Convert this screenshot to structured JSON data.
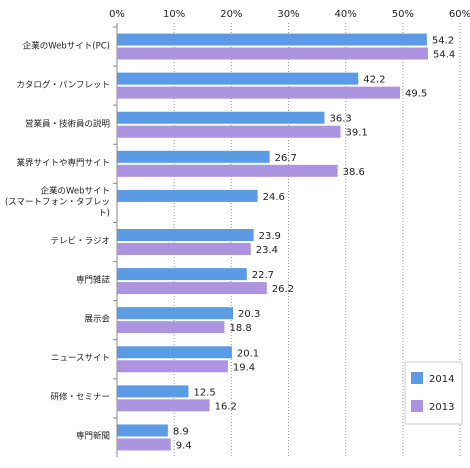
{
  "chart_data": {
    "type": "bar",
    "orientation": "horizontal",
    "categories": [
      "企業のWebサイト(PC)",
      "カタログ・パンフレット",
      "営業員・技術員の説明",
      "業界サイトや専門サイト",
      "企業のWebサイト\n(スマートフォン・タブレット)",
      "テレビ・ラジオ",
      "専門雑誌",
      "展示会",
      "ニュースサイト",
      "研修・セミナー",
      "専門新聞"
    ],
    "series": [
      {
        "name": "2014",
        "color": "#5b9be6",
        "values": [
          54.2,
          42.2,
          36.3,
          26.7,
          24.6,
          23.9,
          22.7,
          20.3,
          20.1,
          12.5,
          8.9
        ]
      },
      {
        "name": "2013",
        "color": "#ad94e0",
        "values": [
          54.4,
          49.5,
          39.1,
          38.6,
          null,
          23.4,
          26.2,
          18.8,
          19.4,
          16.2,
          9.4
        ]
      }
    ],
    "xlim": [
      0,
      60
    ],
    "xticks": [
      {
        "value": 0,
        "label": "0%"
      },
      {
        "value": 10,
        "label": "10%"
      },
      {
        "value": 20,
        "label": "20%"
      },
      {
        "value": 30,
        "label": "30%"
      },
      {
        "value": 40,
        "label": "40%"
      },
      {
        "value": 50,
        "label": "50%"
      },
      {
        "value": 60,
        "label": "60%"
      }
    ],
    "grid": true,
    "legend": "lower right"
  }
}
